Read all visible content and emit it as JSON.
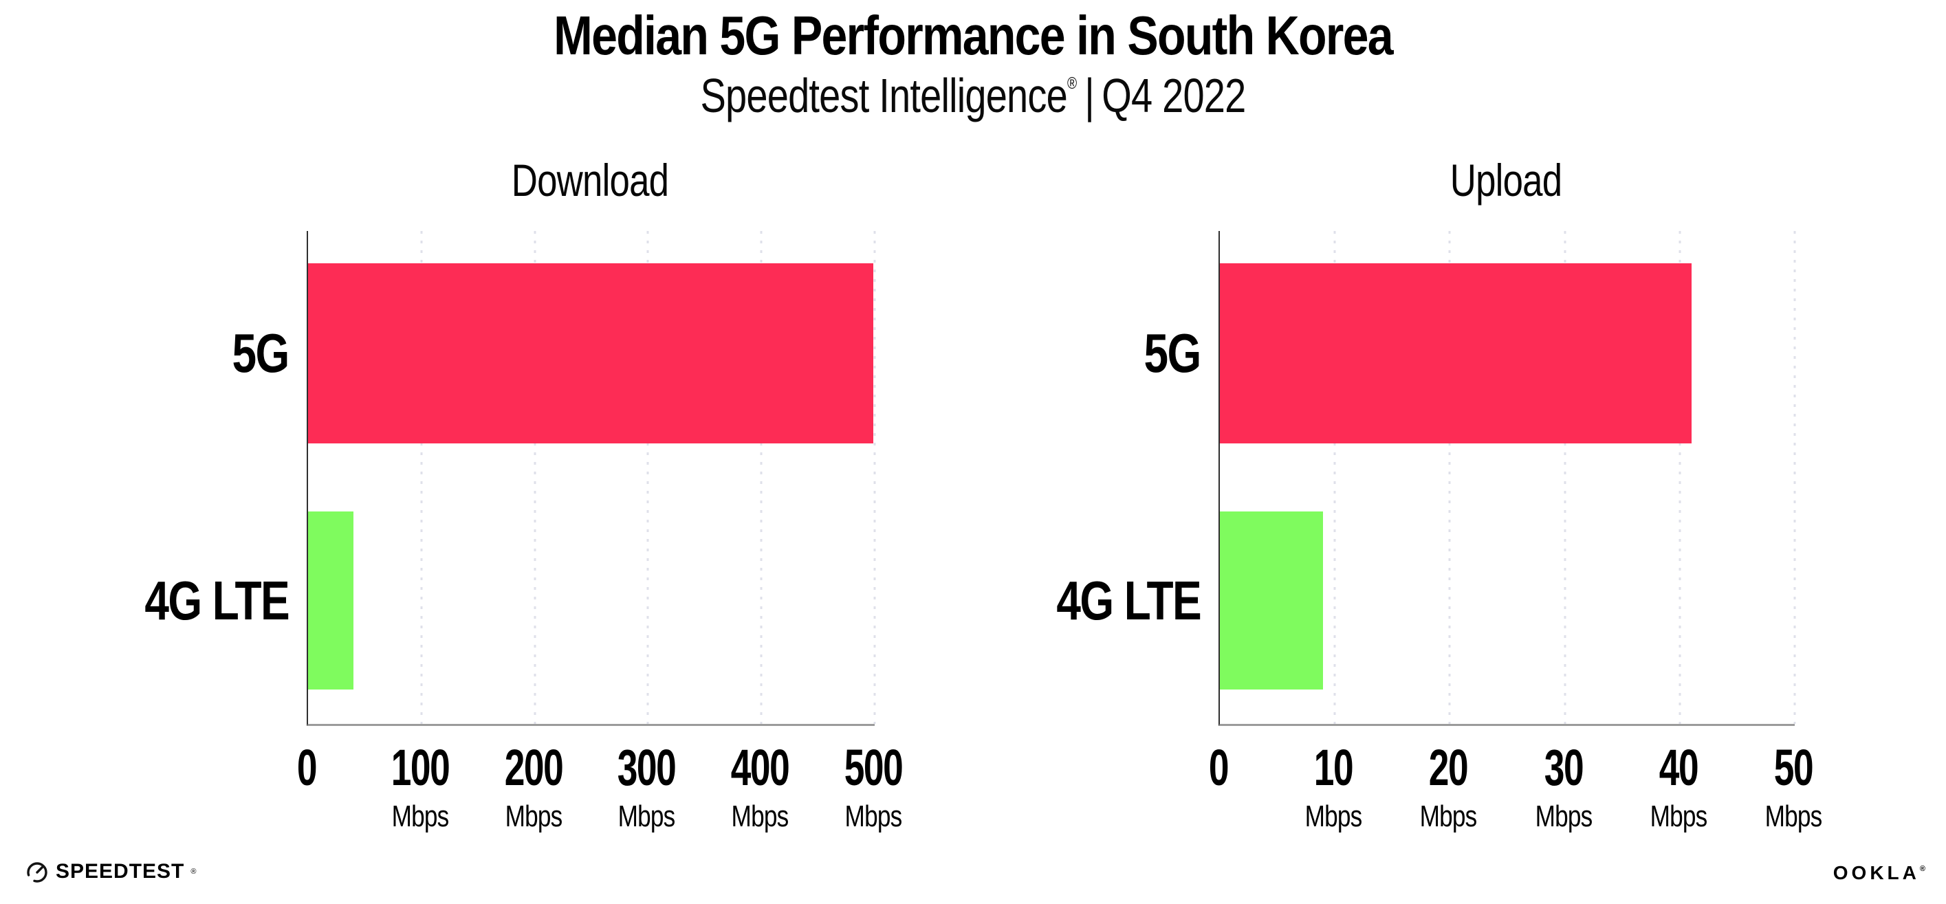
{
  "page": {
    "title": "Median 5G Performance in South Korea",
    "subtitle": {
      "brand": "Speedtest Intelligence",
      "registered": "®",
      "separator": "|",
      "period": "Q4 2022"
    }
  },
  "colors": {
    "bar_5g": "#fd2c55",
    "bar_4g_lte": "#7ffb5e",
    "gridline": "#dfe0ea",
    "y_axis_line": "#2f2f2f",
    "x_axis_line": "#9b9b9b",
    "text": "#000000"
  },
  "chart_data": [
    {
      "type": "bar",
      "orientation": "horizontal",
      "title": "Download",
      "categories": [
        "5G",
        "4G LTE"
      ],
      "values": [
        499,
        40
      ],
      "unit": "Mbps",
      "xlim": [
        0,
        500
      ],
      "xticks": [
        0,
        100,
        200,
        300,
        400,
        500
      ],
      "series_colors": [
        "#fd2c55",
        "#7ffb5e"
      ],
      "grid": "vertical-dotted",
      "legend": "none"
    },
    {
      "type": "bar",
      "orientation": "horizontal",
      "title": "Upload",
      "categories": [
        "5G",
        "4G LTE"
      ],
      "values": [
        41,
        9
      ],
      "unit": "Mbps",
      "xlim": [
        0,
        50
      ],
      "xticks": [
        0,
        10,
        20,
        30,
        40,
        50
      ],
      "series_colors": [
        "#fd2c55",
        "#7ffb5e"
      ],
      "grid": "vertical-dotted",
      "legend": "none"
    }
  ],
  "footer": {
    "speedtest_label": "SPEEDTEST",
    "speedtest_registered": "®",
    "ookla_label": "OOKLA",
    "ookla_registered": "®"
  }
}
